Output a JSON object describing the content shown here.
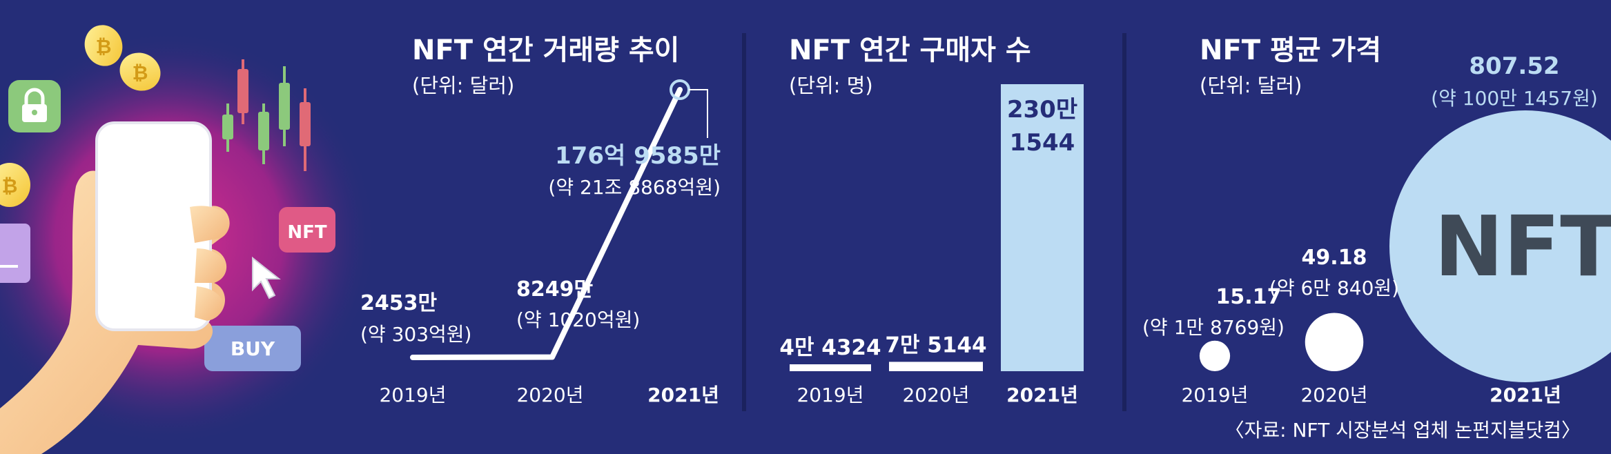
{
  "illustration": {
    "nft_tag": "NFT",
    "buy_button": "BUY",
    "icons": [
      "lock-icon",
      "coin-icon",
      "cursor-icon",
      "candlestick-icon"
    ]
  },
  "panels": {
    "volume": {
      "title": "NFT 연간 거래량 추이",
      "unit": "(단위: 달러)"
    },
    "buyers": {
      "title": "NFT 연간 구매자 수",
      "unit": "(단위: 명)"
    },
    "price": {
      "title": "NFT 평균 가격",
      "unit": "(단위: 달러)",
      "big_circle_text": "NFT"
    }
  },
  "source": "〈자료: NFT 시장분석 업체 논펀지블닷컴〉",
  "colors": {
    "background": "#252d78",
    "accent": "#bcdcf3",
    "line": "#ffffff",
    "big_circle": "#bcdcf3",
    "big_circle_text": "#3f4a57"
  },
  "chart_data": [
    {
      "type": "line",
      "title": "NFT 연간 거래량 추이",
      "unit": "(단위: 달러)",
      "categories": [
        "2019년",
        "2020년",
        "2021년"
      ],
      "values": [
        24530000,
        82490000,
        17695850000
      ],
      "labels": [
        "2453만",
        "8249만",
        "176억 9585만"
      ],
      "sublabels": [
        "(약 303억원)",
        "(약 1020억원)",
        "(약 21조 8868억원)"
      ]
    },
    {
      "type": "bar",
      "title": "NFT 연간 구매자 수",
      "unit": "(단위: 명)",
      "categories": [
        "2019년",
        "2020년",
        "2021년"
      ],
      "values": [
        44324,
        75144,
        2301544
      ],
      "labels": [
        "4만 4324",
        "7만 5144",
        "230만\n1544"
      ]
    },
    {
      "type": "scatter",
      "title": "NFT 평균 가격",
      "unit": "(단위: 달러)",
      "categories": [
        "2019년",
        "2020년",
        "2021년"
      ],
      "values": [
        15.17,
        49.18,
        807.52
      ],
      "labels": [
        "15.17",
        "49.18",
        "807.52"
      ],
      "sublabels": [
        "(약 1만 8769원)",
        "(약 6만 840원)",
        "(약 100만 1457원)"
      ]
    }
  ]
}
